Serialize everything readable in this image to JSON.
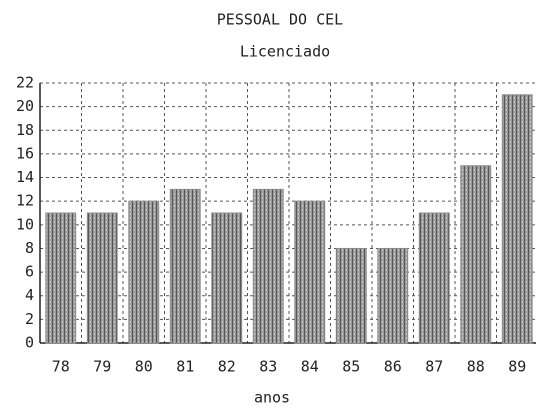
{
  "chart_data": {
    "type": "bar",
    "title": "PESSOAL DO CEL",
    "subtitle": "Licenciado",
    "x_label": "anos",
    "categories": [
      "78",
      "79",
      "80",
      "81",
      "82",
      "83",
      "84",
      "85",
      "86",
      "87",
      "88",
      "89"
    ],
    "values": [
      11,
      11,
      12,
      13,
      11,
      13,
      12,
      8,
      8,
      11,
      15,
      21
    ],
    "color": "#8a8a8a",
    "ylim": [
      0,
      22
    ],
    "yticks": [
      0,
      2,
      4,
      6,
      8,
      10,
      12,
      14,
      16,
      18,
      20,
      22
    ],
    "grid": true
  }
}
